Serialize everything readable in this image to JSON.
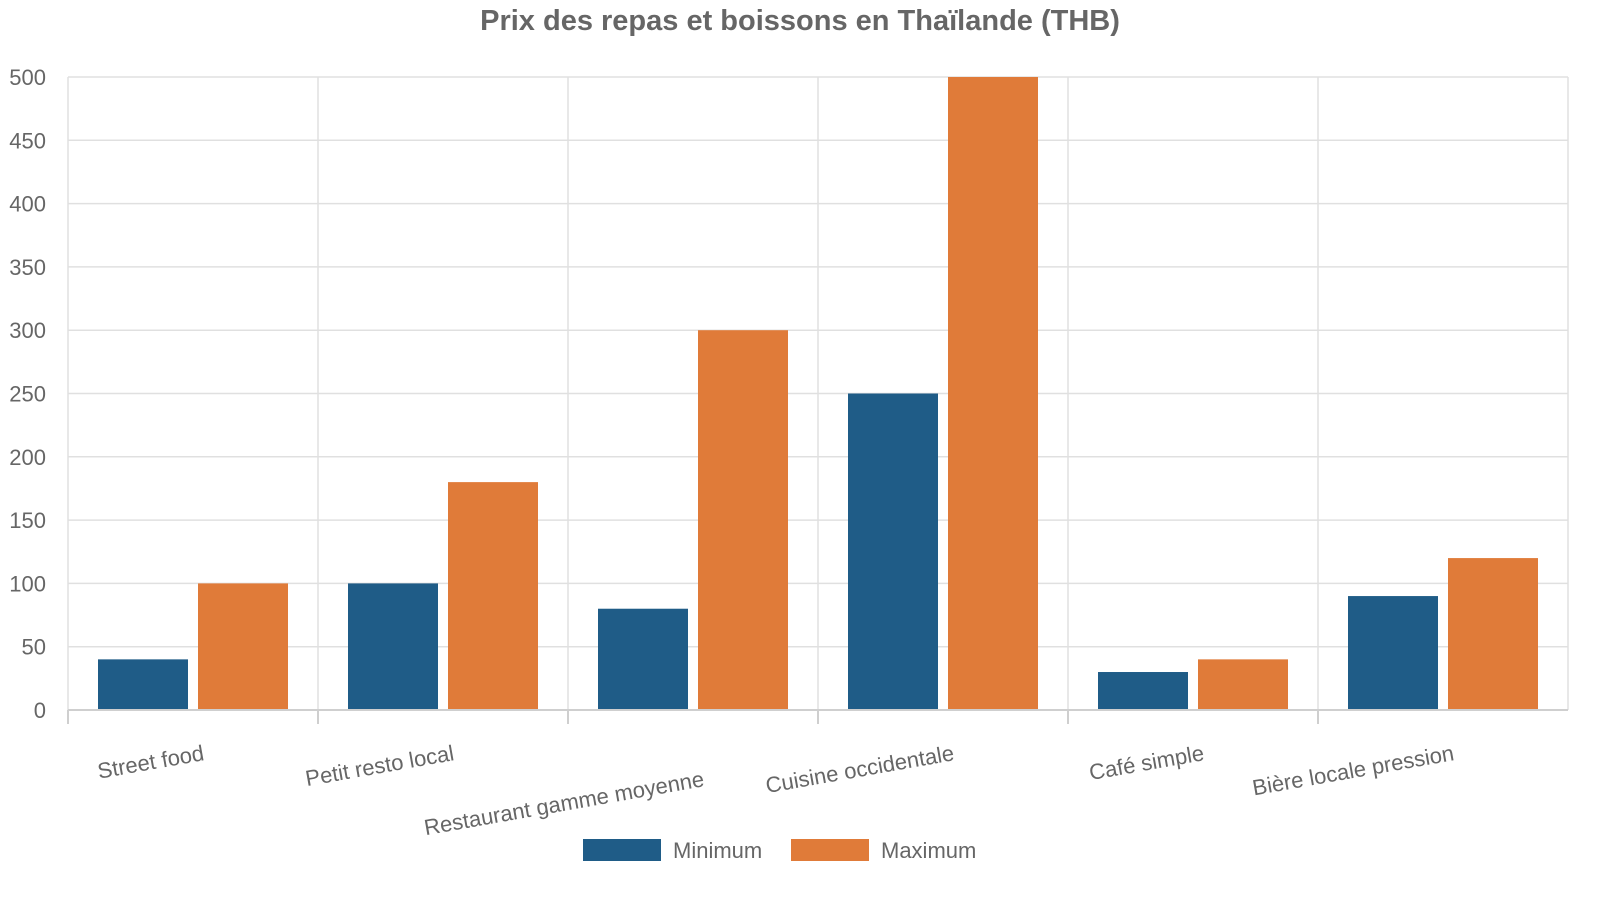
{
  "chart_data": {
    "type": "bar",
    "title": "Prix des repas et boissons en Thaïlande (THB)",
    "xlabel": "",
    "ylabel": "",
    "ylim": [
      0,
      500
    ],
    "yticks": [
      0,
      50,
      100,
      150,
      200,
      250,
      300,
      350,
      400,
      450,
      500
    ],
    "grid": true,
    "legend_position": "bottom",
    "categories": [
      "Street food",
      "Petit resto local",
      "Restaurant gamme moyenne",
      "Cuisine occidentale",
      "Café simple",
      "Bière locale pression"
    ],
    "series": [
      {
        "name": "Minimum",
        "color": "#1f5c87",
        "values": [
          40,
          100,
          80,
          250,
          30,
          90
        ]
      },
      {
        "name": "Maximum",
        "color": "#e07b39",
        "values": [
          100,
          180,
          300,
          500,
          40,
          120
        ]
      }
    ]
  }
}
